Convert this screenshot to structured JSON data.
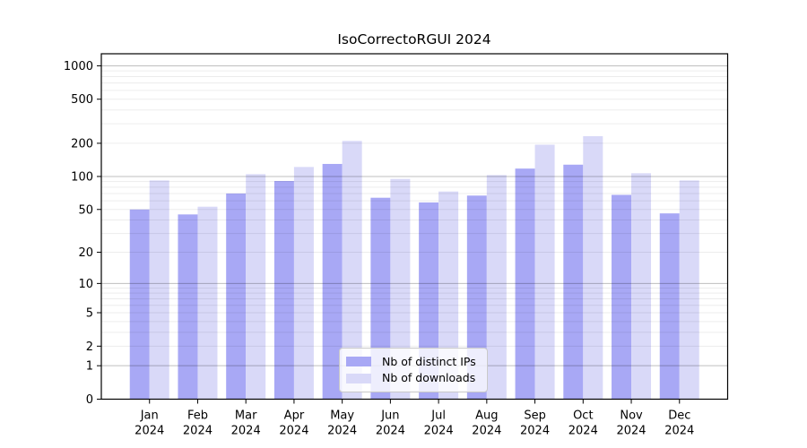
{
  "chart_data": {
    "type": "bar",
    "title": "IsoCorrectoRGUI 2024",
    "categories": [
      "Jan",
      "Feb",
      "Mar",
      "Apr",
      "May",
      "Jun",
      "Jul",
      "Aug",
      "Sep",
      "Oct",
      "Nov",
      "Dec"
    ],
    "category_year": "2024",
    "series": [
      {
        "name": "Nb of distinct IPs",
        "color": "#a8a8f5",
        "values": [
          50,
          45,
          70,
          91,
          130,
          64,
          58,
          67,
          118,
          128,
          68,
          46
        ]
      },
      {
        "name": "Nb of downloads",
        "color": "#d9d9f8",
        "values": [
          92,
          53,
          105,
          122,
          210,
          95,
          73,
          103,
          194,
          232,
          107,
          92
        ]
      }
    ],
    "y_axis": {
      "scale": "log1p",
      "ticks": [
        0,
        1,
        2,
        5,
        10,
        20,
        50,
        100,
        200,
        500,
        1000
      ],
      "major_grid_values": [
        1,
        10,
        100,
        1000
      ],
      "minor_grid_values": [
        2,
        3,
        4,
        5,
        6,
        7,
        8,
        9,
        20,
        30,
        40,
        50,
        60,
        70,
        80,
        90,
        200,
        300,
        400,
        500,
        600,
        700,
        800,
        900
      ],
      "range": [
        0,
        1250
      ]
    },
    "legend": {
      "position": "lower center",
      "entries": [
        "Nb of distinct IPs",
        "Nb of downloads"
      ]
    },
    "grid": true
  },
  "colors": {
    "background": "#ffffff",
    "axis_line": "#000000",
    "tick_text": "#000000",
    "legend_border": "#c9c9c9"
  }
}
